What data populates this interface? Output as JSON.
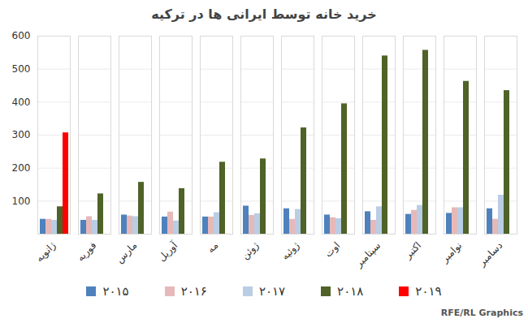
{
  "chart_data": {
    "type": "bar",
    "title": "خرید خانه توسط ایرانی ها در ترکیه",
    "credit": "RFE/RL Graphics",
    "categories": [
      "ژانویه",
      "فوریه",
      "مارس",
      "آوریل",
      "مه",
      "ژوئن",
      "ژوئیه",
      "اوت",
      "سپتامبر",
      "اکتبر",
      "نوامبر",
      "دسامبر"
    ],
    "series": [
      {
        "name": "۲۰۱۵",
        "color": "#4f81bd",
        "values": [
          45,
          42,
          58,
          52,
          52,
          85,
          77,
          58,
          68,
          60,
          63,
          77
        ]
      },
      {
        "name": "۲۰۱۶",
        "color": "#e6b9b8",
        "values": [
          45,
          53,
          55,
          67,
          52,
          57,
          45,
          50,
          42,
          72,
          80,
          45
        ]
      },
      {
        "name": "۲۰۱۷",
        "color": "#b9cde5",
        "values": [
          42,
          42,
          53,
          40,
          65,
          62,
          75,
          47,
          83,
          87,
          80,
          118
        ]
      },
      {
        "name": "۲۰۱۸",
        "color": "#4f6228",
        "values": [
          83,
          122,
          157,
          138,
          218,
          228,
          322,
          395,
          540,
          557,
          463,
          435
        ]
      },
      {
        "name": "۲۰۱۹",
        "color": "#ff0000",
        "values": [
          307,
          null,
          null,
          null,
          null,
          null,
          null,
          null,
          null,
          null,
          null,
          null
        ]
      }
    ],
    "ylim": [
      0,
      600
    ],
    "yticks": [
      100,
      200,
      300,
      400,
      500,
      600
    ],
    "grid": true,
    "legend": "bottom"
  }
}
